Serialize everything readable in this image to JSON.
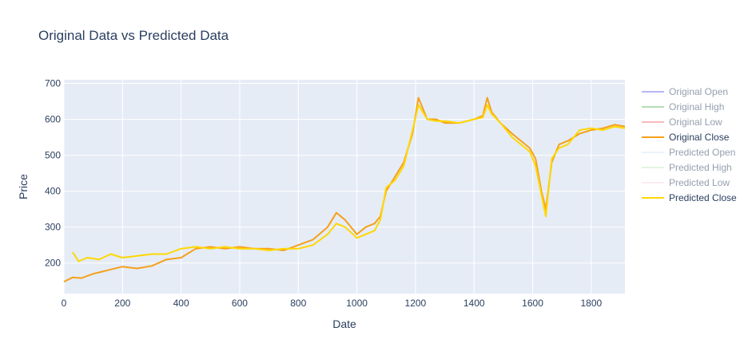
{
  "chart_data": {
    "type": "line",
    "title": "Original Data vs Predicted Data",
    "xlabel": "Date",
    "ylabel": "Price",
    "xlim": [
      0,
      1915
    ],
    "ylim": [
      115,
      710
    ],
    "xticks": [
      0,
      200,
      400,
      600,
      800,
      1000,
      1200,
      1400,
      1600,
      1800
    ],
    "yticks": [
      200,
      300,
      400,
      500,
      600,
      700
    ],
    "grid": true,
    "legend_position": "right",
    "series": [
      {
        "name": "Original Open",
        "color": "#6f6ff5",
        "visible": false
      },
      {
        "name": "Original High",
        "color": "#6cbf6c",
        "visible": false
      },
      {
        "name": "Original Low",
        "color": "#f27a7a",
        "visible": false
      },
      {
        "name": "Original Close",
        "color": "#f5a01a",
        "visible": true,
        "x": [
          0,
          30,
          60,
          100,
          150,
          200,
          250,
          300,
          350,
          400,
          450,
          500,
          550,
          600,
          650,
          700,
          750,
          800,
          850,
          900,
          930,
          960,
          1000,
          1030,
          1060,
          1080,
          1100,
          1130,
          1160,
          1190,
          1210,
          1240,
          1270,
          1300,
          1350,
          1400,
          1430,
          1445,
          1460,
          1490,
          1530,
          1560,
          1590,
          1610,
          1630,
          1645,
          1665,
          1690,
          1720,
          1760,
          1800,
          1840,
          1880,
          1915
        ],
        "y": [
          148,
          160,
          158,
          170,
          180,
          190,
          185,
          192,
          210,
          215,
          240,
          245,
          240,
          245,
          240,
          240,
          235,
          250,
          265,
          300,
          340,
          320,
          280,
          300,
          310,
          330,
          400,
          440,
          480,
          560,
          660,
          600,
          600,
          590,
          590,
          600,
          610,
          660,
          620,
          590,
          560,
          540,
          520,
          490,
          400,
          350,
          480,
          530,
          540,
          560,
          570,
          575,
          585,
          580
        ]
      },
      {
        "name": "Predicted Open",
        "color": "#dbe6f7",
        "visible": false
      },
      {
        "name": "Predicted High",
        "color": "#c9efc3",
        "visible": false
      },
      {
        "name": "Predicted Low",
        "color": "#fbd8e6",
        "visible": false
      },
      {
        "name": "Predicted Close",
        "color": "#ffd700",
        "visible": true,
        "x": [
          30,
          50,
          80,
          120,
          160,
          200,
          250,
          300,
          350,
          400,
          450,
          500,
          550,
          600,
          650,
          700,
          750,
          800,
          850,
          900,
          930,
          960,
          1000,
          1030,
          1060,
          1080,
          1100,
          1130,
          1160,
          1190,
          1210,
          1240,
          1270,
          1300,
          1350,
          1400,
          1430,
          1445,
          1460,
          1490,
          1530,
          1560,
          1590,
          1610,
          1630,
          1645,
          1665,
          1690,
          1720,
          1760,
          1800,
          1840,
          1880,
          1915
        ],
        "y": [
          230,
          205,
          215,
          210,
          225,
          215,
          220,
          225,
          225,
          240,
          245,
          240,
          245,
          240,
          240,
          235,
          240,
          240,
          250,
          280,
          310,
          300,
          270,
          280,
          290,
          320,
          410,
          430,
          470,
          570,
          640,
          600,
          595,
          595,
          590,
          600,
          605,
          640,
          615,
          590,
          550,
          530,
          510,
          470,
          390,
          330,
          490,
          520,
          530,
          570,
          575,
          570,
          580,
          575
        ]
      }
    ]
  }
}
